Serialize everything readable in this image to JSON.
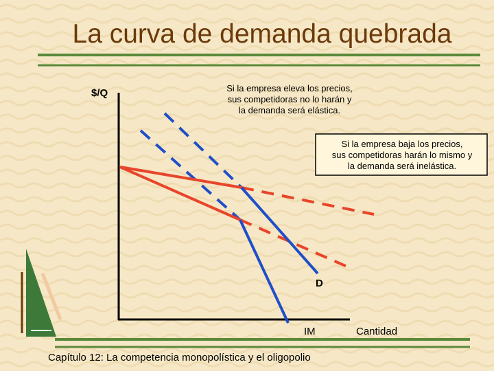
{
  "title": "La curva de demanda quebrada",
  "axes": {
    "y_label": "$/Q",
    "x_label": "Cantidad"
  },
  "curve_labels": {
    "demand": "D",
    "marginal_revenue": "IM"
  },
  "annotations": [
    {
      "lines": [
        "Si la empresa eleva los precios,",
        "sus competidoras no lo harán y",
        "la demanda será elástica."
      ]
    },
    {
      "lines": [
        "Si la empresa baja los precios,",
        "sus competidoras harán lo mismo y",
        "la demanda será inelástica."
      ]
    }
  ],
  "footer": "Capítulo 12: La competencia monopolística y el oligopolio"
}
